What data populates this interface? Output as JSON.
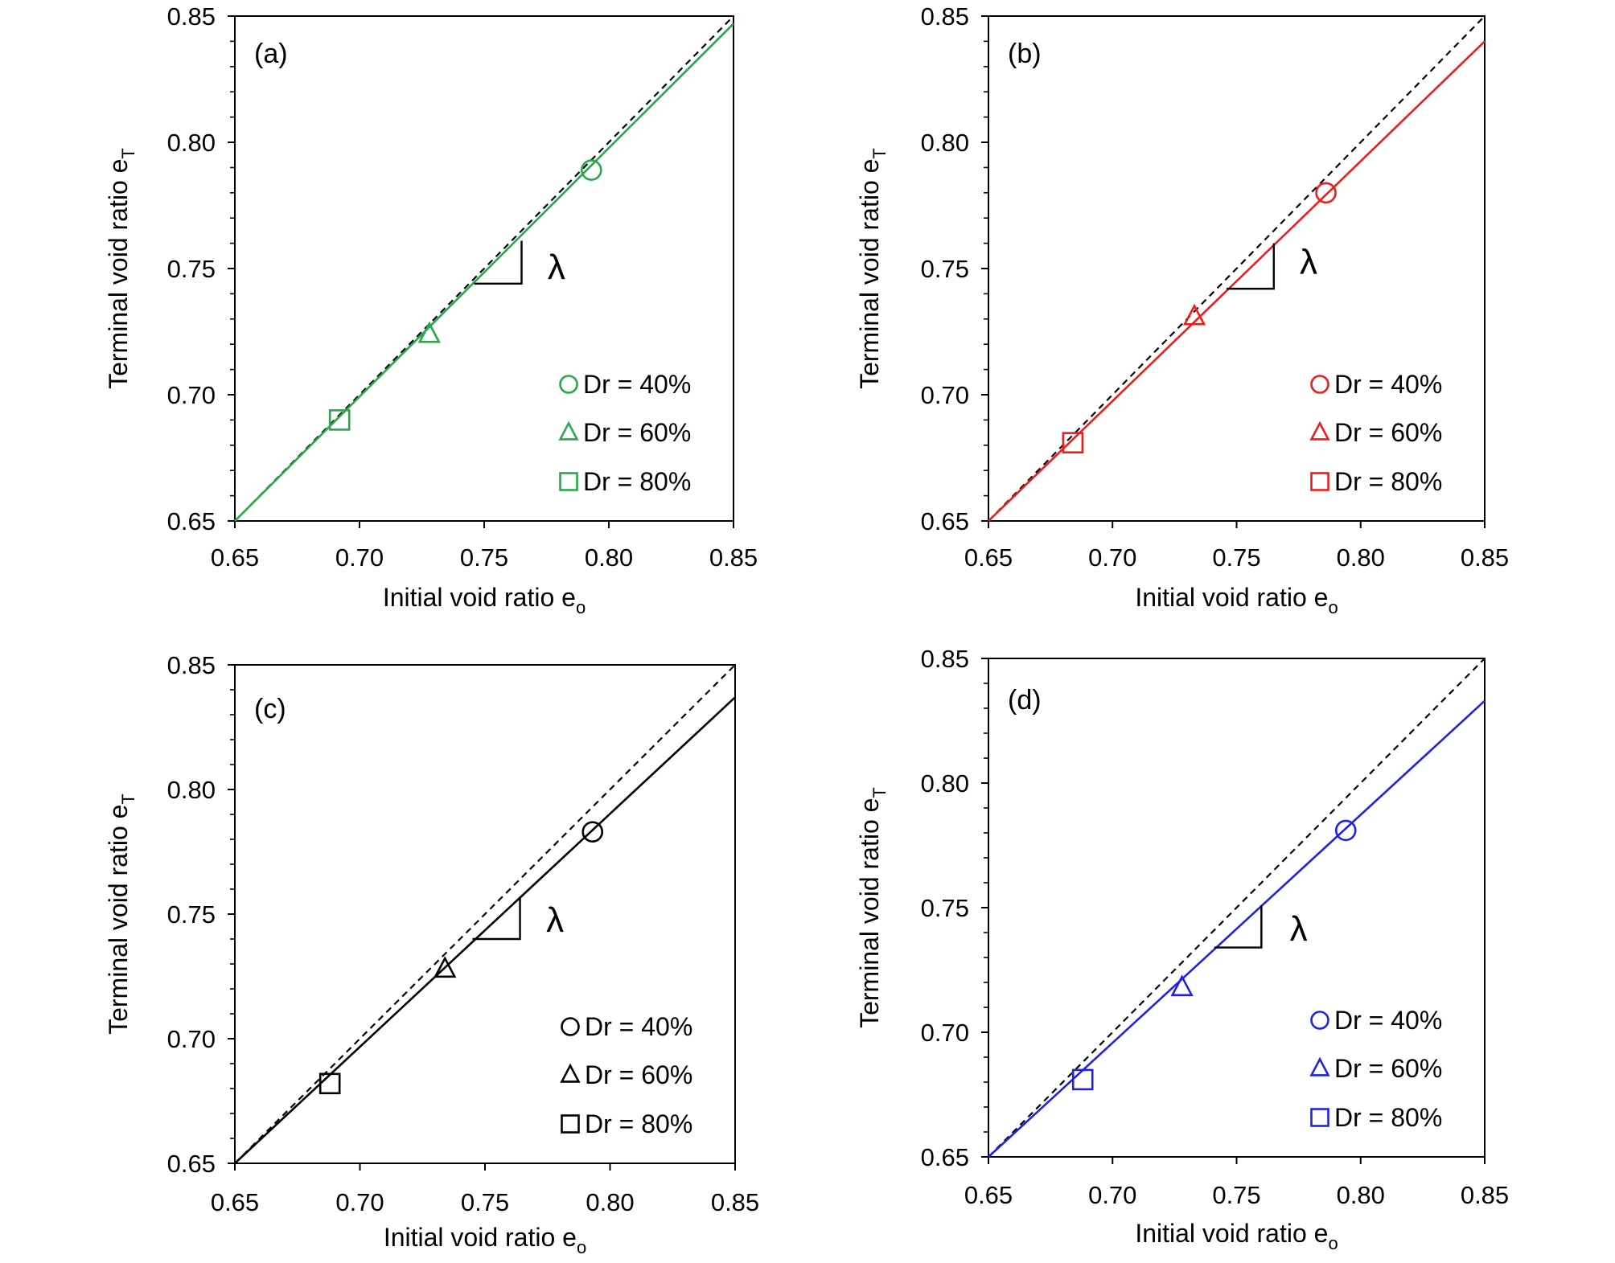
{
  "chart_data": [
    {
      "panel_label": "(a)",
      "type": "scatter",
      "xlabel": "Initial void ratio e",
      "xlabel_sub": "o",
      "ylabel": "Terminal void ratio e",
      "ylabel_sub": "T",
      "xlim": [
        0.65,
        0.85
      ],
      "ylim": [
        0.65,
        0.85
      ],
      "xtick_labels": [
        "0.65",
        "0.70",
        "0.75",
        "0.80",
        "0.85"
      ],
      "ytick_labels": [
        "0.65",
        "0.70",
        "0.75",
        "0.80",
        "0.85"
      ],
      "color": "#27a84a",
      "series": [
        {
          "name": "Dr = 40%",
          "marker": "circle",
          "x": [
            0.793
          ],
          "y": [
            0.789
          ]
        },
        {
          "name": "Dr = 60%",
          "marker": "triangle",
          "x": [
            0.728
          ],
          "y": [
            0.724
          ]
        },
        {
          "name": "Dr = 80%",
          "marker": "square",
          "x": [
            0.692
          ],
          "y": [
            0.69
          ]
        }
      ],
      "fit_line": {
        "x": [
          0.65,
          0.85
        ],
        "y": [
          0.65,
          0.847
        ]
      },
      "reference_line": {
        "style": "dashed",
        "color": "#000000",
        "x": [
          0.65,
          0.85
        ],
        "y": [
          0.65,
          0.85
        ]
      },
      "slope_label": "λ",
      "legend": "bottom-right",
      "grid": false
    },
    {
      "panel_label": "(b)",
      "type": "scatter",
      "xlabel": "Initial void ratio e",
      "xlabel_sub": "o",
      "ylabel": "Terminal void ratio e",
      "ylabel_sub": "T",
      "xlim": [
        0.65,
        0.85
      ],
      "ylim": [
        0.65,
        0.85
      ],
      "xtick_labels": [
        "0.65",
        "0.70",
        "0.75",
        "0.80",
        "0.85"
      ],
      "ytick_labels": [
        "0.65",
        "0.70",
        "0.75",
        "0.80",
        "0.85"
      ],
      "color": "#f01c1c",
      "series": [
        {
          "name": "Dr = 40%",
          "marker": "circle",
          "x": [
            0.786
          ],
          "y": [
            0.78
          ]
        },
        {
          "name": "Dr = 60%",
          "marker": "triangle",
          "x": [
            0.733
          ],
          "y": [
            0.731
          ]
        },
        {
          "name": "Dr = 80%",
          "marker": "square",
          "x": [
            0.684
          ],
          "y": [
            0.681
          ]
        }
      ],
      "fit_line": {
        "x": [
          0.65,
          0.85
        ],
        "y": [
          0.65,
          0.84
        ]
      },
      "reference_line": {
        "style": "dashed",
        "color": "#000000",
        "x": [
          0.65,
          0.85
        ],
        "y": [
          0.65,
          0.85
        ]
      },
      "slope_label": "λ",
      "legend": "bottom-right",
      "grid": false
    },
    {
      "panel_label": "(c)",
      "type": "scatter",
      "xlabel": "Initial void ratio e",
      "xlabel_sub": "o",
      "ylabel": "Terminal void ratio e",
      "ylabel_sub": "T",
      "xlim": [
        0.65,
        0.85
      ],
      "ylim": [
        0.65,
        0.85
      ],
      "xtick_labels": [
        "0.65",
        "0.70",
        "0.75",
        "0.80",
        "0.85"
      ],
      "ytick_labels": [
        "0.65",
        "0.70",
        "0.75",
        "0.80",
        "0.85"
      ],
      "color": "#000000",
      "series": [
        {
          "name": "Dr = 40%",
          "marker": "circle",
          "x": [
            0.793
          ],
          "y": [
            0.783
          ]
        },
        {
          "name": "Dr = 60%",
          "marker": "triangle",
          "x": [
            0.734
          ],
          "y": [
            0.728
          ]
        },
        {
          "name": "Dr = 80%",
          "marker": "square",
          "x": [
            0.688
          ],
          "y": [
            0.682
          ]
        }
      ],
      "fit_line": {
        "x": [
          0.65,
          0.85
        ],
        "y": [
          0.65,
          0.837
        ]
      },
      "reference_line": {
        "style": "dashed",
        "color": "#000000",
        "x": [
          0.65,
          0.85
        ],
        "y": [
          0.65,
          0.85
        ]
      },
      "slope_label": "λ",
      "legend": "bottom-right",
      "grid": false
    },
    {
      "panel_label": "(d)",
      "type": "scatter",
      "xlabel": "Initial void ratio e",
      "xlabel_sub": "o",
      "ylabel": "Terminal void ratio e",
      "ylabel_sub": "T",
      "xlim": [
        0.65,
        0.85
      ],
      "ylim": [
        0.65,
        0.85
      ],
      "xtick_labels": [
        "0.65",
        "0.70",
        "0.75",
        "0.80",
        "0.85"
      ],
      "ytick_labels": [
        "0.65",
        "0.70",
        "0.75",
        "0.80",
        "0.85"
      ],
      "color": "#1f22e6",
      "series": [
        {
          "name": "Dr = 40%",
          "marker": "circle",
          "x": [
            0.794
          ],
          "y": [
            0.781
          ]
        },
        {
          "name": "Dr = 60%",
          "marker": "triangle",
          "x": [
            0.728
          ],
          "y": [
            0.718
          ]
        },
        {
          "name": "Dr = 80%",
          "marker": "square",
          "x": [
            0.688
          ],
          "y": [
            0.681
          ]
        }
      ],
      "fit_line": {
        "x": [
          0.65,
          0.85
        ],
        "y": [
          0.65,
          0.833
        ]
      },
      "reference_line": {
        "style": "dashed",
        "color": "#000000",
        "x": [
          0.65,
          0.85
        ],
        "y": [
          0.65,
          0.85
        ]
      },
      "slope_label": "λ",
      "legend": "bottom-right",
      "grid": false
    }
  ]
}
